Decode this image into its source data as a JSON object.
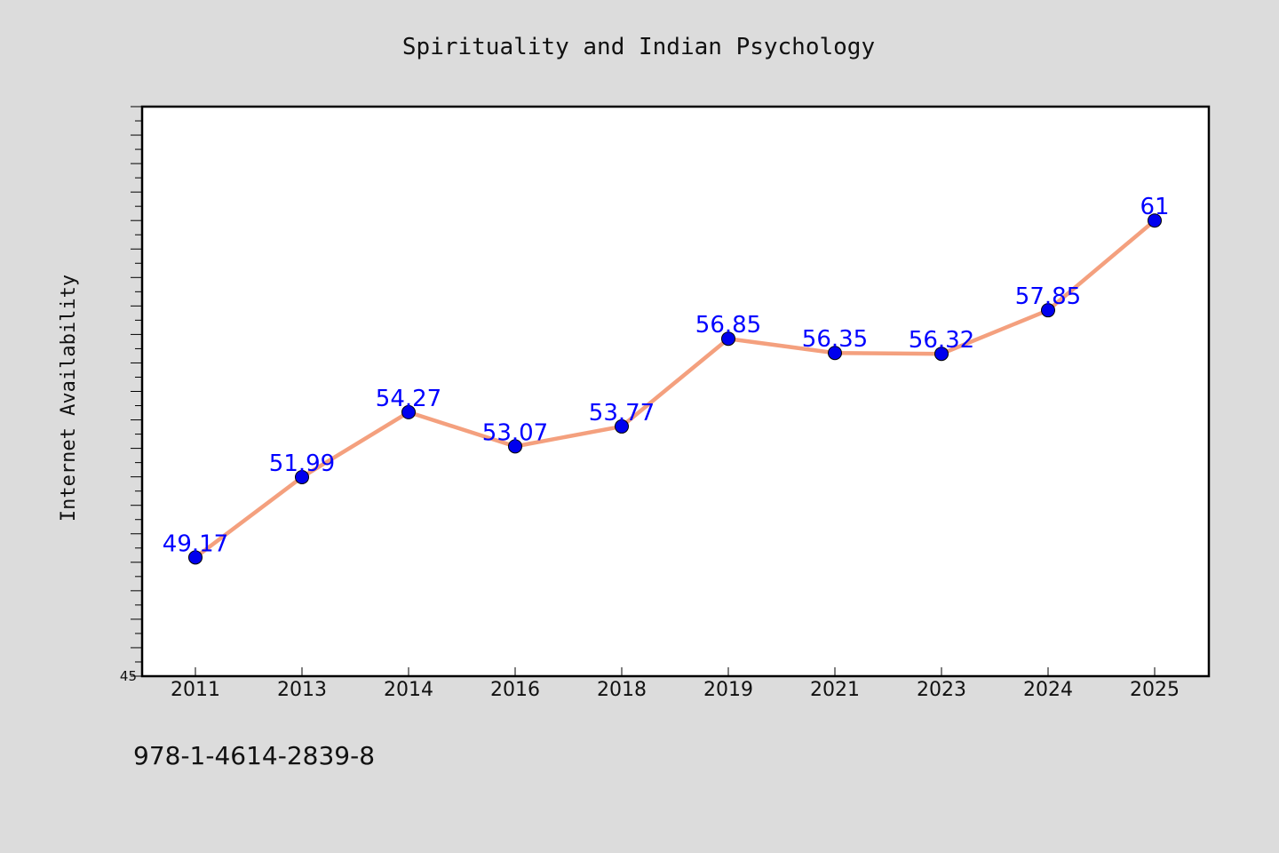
{
  "footer": {
    "isbn": "978-1-4614-2839-8"
  },
  "chart_data": {
    "type": "line",
    "title": "Spirituality and Indian Psychology",
    "xlabel": "",
    "ylabel": "Internet Availability",
    "categories": [
      "2011",
      "2013",
      "2014",
      "2016",
      "2018",
      "2019",
      "2021",
      "2023",
      "2024",
      "2025"
    ],
    "series": [
      {
        "values": [
          49.17,
          51.99,
          54.27,
          53.07,
          53.77,
          56.85,
          56.35,
          56.32,
          57.85,
          61
        ],
        "labels": [
          "49.17",
          "51.99",
          "54.27",
          "53.07",
          "53.77",
          "56.85",
          "56.35",
          "56.32",
          "57.85",
          "61"
        ]
      }
    ],
    "ylim": [
      45,
      65
    ],
    "y_tick_labels": [
      "45"
    ],
    "grid": false,
    "legend": "none",
    "colors": {
      "line": "#f4a07e",
      "marker": "#0000ee",
      "label": "#0000ff",
      "plot_background": "#ffffff",
      "page_background": "#dcdcdc"
    }
  }
}
